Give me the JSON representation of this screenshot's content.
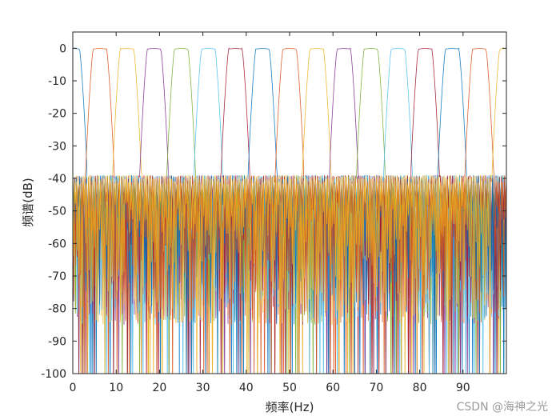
{
  "chart_data": {
    "type": "line",
    "title": "",
    "xlabel": "频率(Hz)",
    "ylabel": "频谱(dB)",
    "xlim": [
      0,
      100
    ],
    "ylim": [
      -100,
      5
    ],
    "xticks": [
      0,
      10,
      20,
      30,
      40,
      50,
      60,
      70,
      80,
      90
    ],
    "yticks": [
      0,
      -10,
      -20,
      -30,
      -40,
      -50,
      -60,
      -70,
      -80,
      -90,
      -100
    ],
    "grid": false,
    "legend": "none",
    "stopband_floor_db": -39,
    "passband_db": 0,
    "series": [
      {
        "center_hz": 0.0,
        "color": "#0072BD"
      },
      {
        "center_hz": 6.25,
        "color": "#D95319"
      },
      {
        "center_hz": 12.5,
        "color": "#EDB120"
      },
      {
        "center_hz": 18.75,
        "color": "#7E2F8E"
      },
      {
        "center_hz": 25.0,
        "color": "#77AC30"
      },
      {
        "center_hz": 31.25,
        "color": "#4DBEEE"
      },
      {
        "center_hz": 37.5,
        "color": "#A2142F"
      },
      {
        "center_hz": 43.75,
        "color": "#0072BD"
      },
      {
        "center_hz": 50.0,
        "color": "#D95319"
      },
      {
        "center_hz": 56.25,
        "color": "#EDB120"
      },
      {
        "center_hz": 62.5,
        "color": "#7E2F8E"
      },
      {
        "center_hz": 68.75,
        "color": "#77AC30"
      },
      {
        "center_hz": 75.0,
        "color": "#4DBEEE"
      },
      {
        "center_hz": 81.25,
        "color": "#A2142F"
      },
      {
        "center_hz": 87.5,
        "color": "#0072BD"
      },
      {
        "center_hz": 93.75,
        "color": "#D95319"
      },
      {
        "center_hz": 100.0,
        "color": "#EDB120"
      }
    ]
  },
  "watermark": "CSDN @海神之光"
}
